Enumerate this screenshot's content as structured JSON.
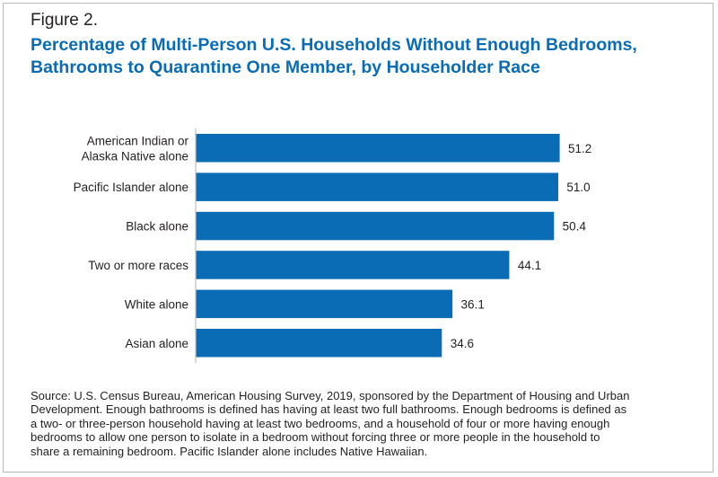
{
  "figure_label": "Figure 2.",
  "title_lines": [
    "Percentage of Multi-Person U.S. Households Without Enough Bedrooms,",
    "Bathrooms to Quarantine One Member, by Householder Race"
  ],
  "source_lines": [
    "Source: U.S. Census Bureau, American Housing Survey, 2019, sponsored by the Department of Housing and Urban",
    "Development. Enough bathrooms is defined has having at least two full bathrooms. Enough bedrooms is defined as",
    "a two- or three-person household having at least two bedrooms, and a household of four or more having enough",
    "bedrooms to allow one person to isolate in a bedroom without forcing three or more people in the household to",
    "share a remaining bedroom. Pacific Islander alone includes Native Hawaiian."
  ],
  "colors": {
    "bar": "#0a6cb5",
    "title": "#0a6cb5",
    "axis": "#bdbdbd"
  },
  "chart_data": {
    "type": "bar",
    "orientation": "horizontal",
    "title": "Percentage of Multi-Person U.S. Households Without Enough Bedrooms, Bathrooms to Quarantine One Member, by Householder Race",
    "categories": [
      [
        "American Indian or",
        "Alaska Native alone"
      ],
      [
        "Pacific Islander alone"
      ],
      [
        "Black alone"
      ],
      [
        "Two or more races"
      ],
      [
        "White alone"
      ],
      [
        "Asian alone"
      ]
    ],
    "values": [
      51.2,
      51.0,
      50.4,
      44.1,
      36.1,
      34.6
    ],
    "value_labels": [
      "51.2",
      "51.0",
      "50.4",
      "44.1",
      "36.1",
      "34.6"
    ],
    "xlim": [
      0,
      60
    ],
    "grid": false,
    "legend": "none"
  }
}
